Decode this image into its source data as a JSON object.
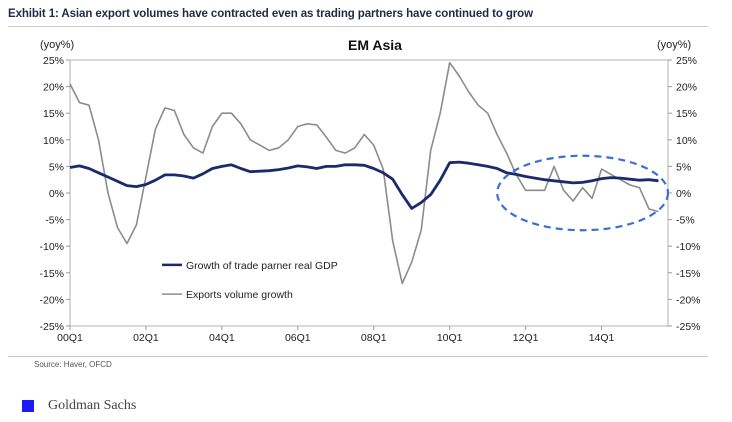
{
  "exhibit_title": "Exhibit 1: Asian export volumes have contracted even as trading partners have continued to grow",
  "source": "Source: Haver, OFCD",
  "brand": "Goldman Sachs",
  "colors": {
    "gdp_series": "#1b2a6b",
    "exports_series": "#8c8c8c",
    "highlight_circle": "#3a6fd8",
    "brand": "#1a1aff"
  },
  "chart_data": {
    "type": "line",
    "title": "EM Asia",
    "ylabel_left": "(yoy%)",
    "ylabel_right": "(yoy%)",
    "ylim_left": [
      -25,
      25
    ],
    "ylim_right": [
      -25,
      25
    ],
    "left_ticks": [
      "25%",
      "20%",
      "15%",
      "10%",
      "5%",
      "0%",
      "-5%",
      "-10%",
      "-15%",
      "-20%",
      "-25%"
    ],
    "right_ticks": [
      "25%",
      "20%",
      "15%",
      "10%",
      "5%",
      "0%",
      "-5%",
      "-10%",
      "-15%",
      "-20%",
      "-25%"
    ],
    "x_tick_labels": [
      {
        "label": "00Q1",
        "t": 0
      },
      {
        "label": "02Q1",
        "t": 8
      },
      {
        "label": "04Q1",
        "t": 16
      },
      {
        "label": "06Q1",
        "t": 24
      },
      {
        "label": "08Q1",
        "t": 32
      },
      {
        "label": "10Q1",
        "t": 40
      },
      {
        "label": "12Q1",
        "t": 48
      },
      {
        "label": "14Q1",
        "t": 56
      }
    ],
    "xlim": [
      0,
      63
    ],
    "grid": false,
    "legend_position": "lower-left",
    "annotation": "dashed ellipse highlighting 2012Q1 onward",
    "highlight_range": {
      "t_start": 45,
      "t_end": 63,
      "y_low": -7,
      "y_high": 7
    },
    "series": [
      {
        "name": "Growth of trade parner real GDP",
        "axis": "left",
        "t": [
          0,
          1,
          2,
          3,
          4,
          5,
          6,
          7,
          8,
          9,
          10,
          11,
          12,
          13,
          14,
          15,
          16,
          17,
          18,
          19,
          20,
          21,
          22,
          23,
          24,
          25,
          26,
          27,
          28,
          29,
          30,
          31,
          32,
          33,
          34,
          35,
          36,
          37,
          38,
          39,
          40,
          41,
          42,
          43,
          44,
          45,
          46,
          47,
          48,
          49,
          50,
          51,
          52,
          53,
          54,
          55,
          56,
          57,
          58,
          59,
          60,
          61,
          62
        ],
        "values": [
          4.8,
          5.1,
          4.6,
          3.8,
          3.0,
          2.2,
          1.4,
          1.2,
          1.6,
          2.4,
          3.4,
          3.4,
          3.2,
          2.8,
          3.6,
          4.6,
          5.0,
          5.3,
          4.6,
          4.0,
          4.1,
          4.2,
          4.4,
          4.7,
          5.1,
          4.9,
          4.6,
          5.0,
          5.0,
          5.3,
          5.3,
          5.2,
          4.6,
          3.8,
          2.6,
          -0.3,
          -2.9,
          -1.8,
          -0.3,
          2.4,
          5.7,
          5.8,
          5.6,
          5.3,
          5.0,
          4.6,
          3.8,
          3.5,
          3.1,
          2.8,
          2.5,
          2.3,
          2.1,
          1.9,
          2.0,
          2.3,
          2.7,
          2.9,
          2.8,
          2.6,
          2.4,
          2.5,
          2.3
        ]
      },
      {
        "name": "Exports volume growth",
        "axis": "right",
        "t": [
          0,
          1,
          2,
          3,
          4,
          5,
          6,
          7,
          8,
          9,
          10,
          11,
          12,
          13,
          14,
          15,
          16,
          17,
          18,
          19,
          20,
          21,
          22,
          23,
          24,
          25,
          26,
          27,
          28,
          29,
          30,
          31,
          32,
          33,
          34,
          35,
          36,
          37,
          38,
          39,
          40,
          41,
          42,
          43,
          44,
          45,
          46,
          47,
          48,
          49,
          50,
          51,
          52,
          53,
          54,
          55,
          56,
          57,
          58,
          59,
          60,
          61,
          62
        ],
        "values": [
          20.5,
          17.0,
          16.5,
          10.0,
          0.0,
          -6.5,
          -9.5,
          -6.0,
          3.0,
          12.0,
          16.0,
          15.5,
          11.0,
          8.5,
          7.5,
          12.5,
          15.0,
          15.0,
          13.0,
          10.0,
          9.0,
          8.0,
          8.5,
          10.0,
          12.5,
          13.0,
          12.8,
          10.5,
          8.0,
          7.5,
          8.5,
          11.0,
          9.0,
          4.5,
          -9.0,
          -17.0,
          -13.0,
          -7.0,
          8.0,
          15.0,
          24.5,
          22.0,
          19.0,
          16.5,
          15.0,
          11.0,
          7.5,
          3.5,
          0.5,
          0.5,
          0.5,
          5.0,
          0.5,
          -1.5,
          1.0,
          -1.0,
          4.5,
          3.5,
          2.5,
          1.5,
          1.0,
          -3.0,
          -3.5
        ]
      }
    ]
  }
}
